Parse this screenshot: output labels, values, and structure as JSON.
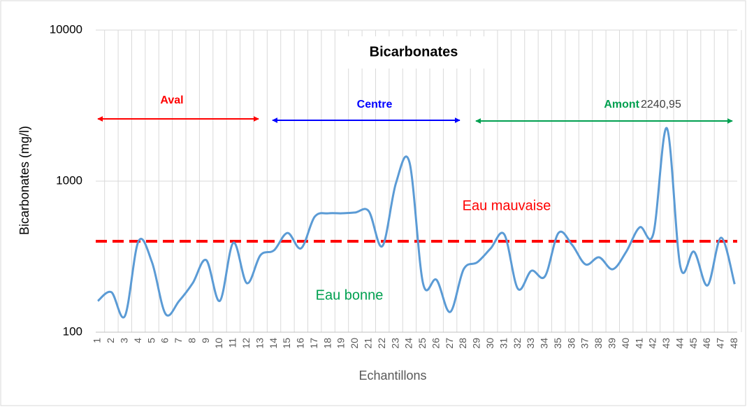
{
  "chart_data": {
    "type": "line",
    "title": "Bicarbonates",
    "x_label": "Echantillons",
    "y_label": "Bicarbonates  (mg/l)",
    "categories": [
      "1",
      "2",
      "3",
      "4",
      "5",
      "6",
      "7",
      "8",
      "9",
      "10",
      "11",
      "12",
      "13",
      "14",
      "15",
      "16",
      "17",
      "18",
      "19",
      "20",
      "21",
      "22",
      "23",
      "24",
      "25",
      "26",
      "27",
      "28",
      "29",
      "30",
      "31",
      "32",
      "33",
      "34",
      "35",
      "36",
      "37",
      "38",
      "39",
      "40",
      "41",
      "42",
      "43",
      "44",
      "45",
      "46",
      "47",
      "48"
    ],
    "series": [
      {
        "name": "Bicarbonates",
        "color": "#5b9bd5",
        "values": [
          161,
          184,
          128,
          400,
          290,
          132,
          161,
          211,
          300,
          161,
          391,
          211,
          323,
          348,
          454,
          359,
          580,
          612,
          612,
          620,
          632,
          371,
          968,
          1334,
          211,
          222,
          136,
          261,
          290,
          359,
          444,
          194,
          255,
          234,
          454,
          379,
          281,
          313,
          261,
          341,
          495,
          448,
          2240.95,
          270,
          341,
          204,
          422,
          208
        ],
        "value_labels": [
          null,
          null,
          null,
          null,
          null,
          null,
          null,
          null,
          null,
          null,
          null,
          null,
          null,
          null,
          null,
          null,
          null,
          null,
          null,
          null,
          null,
          null,
          null,
          null,
          null,
          null,
          null,
          null,
          null,
          null,
          null,
          null,
          null,
          null,
          null,
          null,
          null,
          null,
          null,
          null,
          null,
          null,
          "2240,95",
          null,
          null,
          null,
          null,
          null
        ]
      }
    ],
    "threshold": 400,
    "threshold_color": "#ff0000",
    "annotations": {
      "aval": "Aval",
      "centre": "Centre",
      "amont": "Amont",
      "bad": "Eau mauvaise",
      "good": "Eau bonne"
    },
    "ylim": [
      100,
      10000
    ],
    "yticks": [
      100,
      1000,
      10000
    ],
    "log_y": true,
    "grid": true
  }
}
